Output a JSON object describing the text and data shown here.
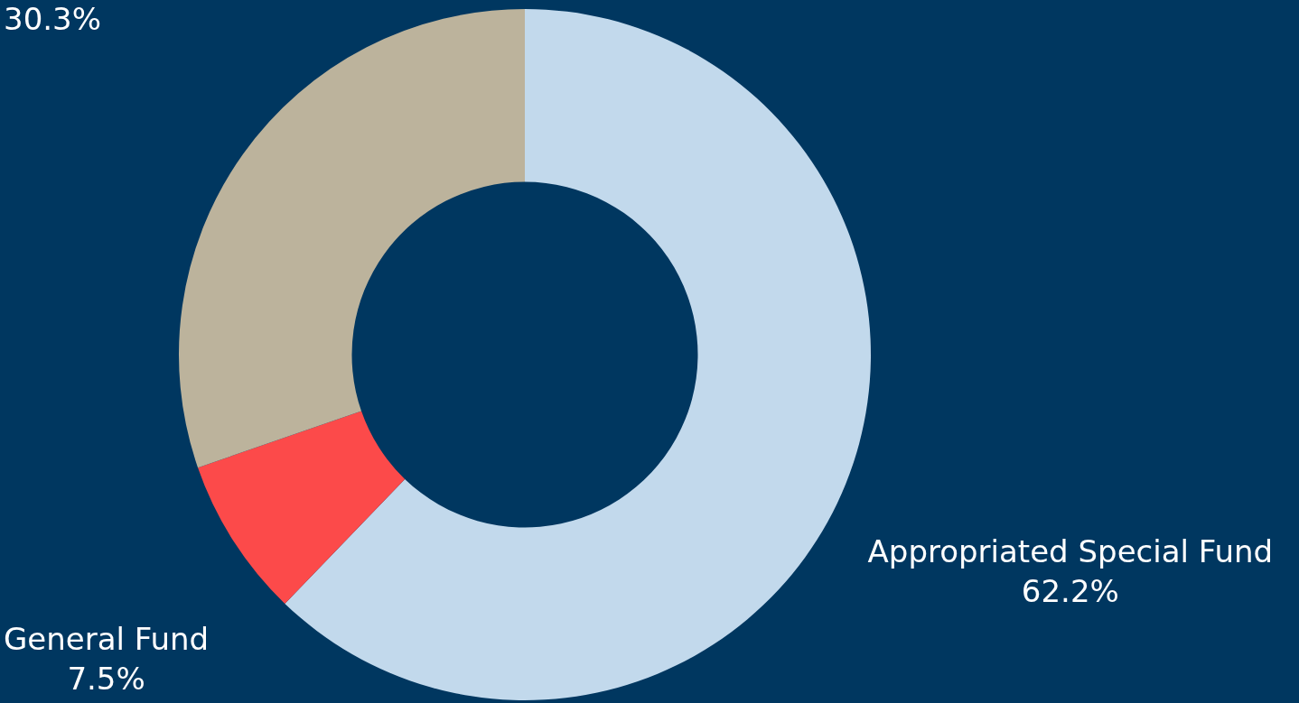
{
  "chart_data": {
    "type": "donut",
    "categories": [
      "Appropriated Special Fund",
      "General Fund",
      null
    ],
    "values": [
      62.2,
      7.5,
      30.3
    ],
    "colors": [
      "#c2d9ec",
      "#fc4a4a",
      "#bcb39c"
    ],
    "value_labels": [
      "62.2%",
      "7.5%",
      "30.3%"
    ],
    "legend": false
  }
}
